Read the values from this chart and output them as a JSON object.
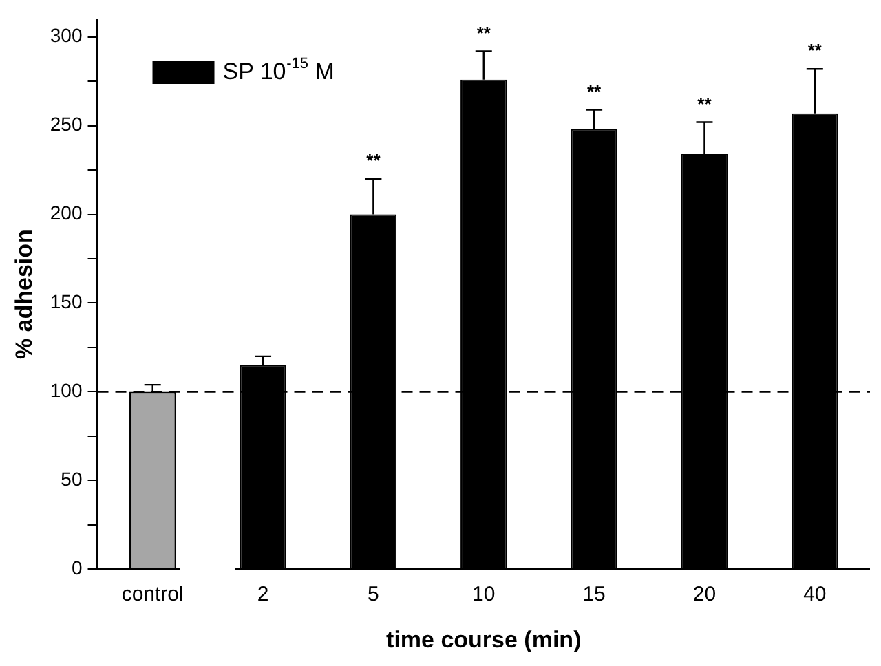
{
  "chart_data": {
    "type": "bar",
    "ylabel": "% adhesion",
    "xlabel": "time course (min)",
    "categories": [
      "control",
      "2",
      "5",
      "10",
      "15",
      "20",
      "40"
    ],
    "series": [
      {
        "name": "SP 10$^{-15}$ M",
        "color": "#000000",
        "colors": [
          "#a6a6a6",
          "#000000",
          "#000000",
          "#000000",
          "#000000",
          "#000000",
          "#000000"
        ],
        "values": [
          100,
          115,
          200,
          276,
          248,
          234,
          257
        ],
        "errors": [
          4,
          5,
          20,
          16,
          11,
          18,
          25
        ]
      }
    ],
    "ylim": [
      0,
      310
    ],
    "yticks": [
      0,
      {
        "value": 25,
        "label": null
      },
      50,
      {
        "value": 75,
        "label": null
      },
      100,
      {
        "value": 125,
        "label": null
      },
      150,
      {
        "value": 175,
        "label": null
      },
      200,
      {
        "value": 225,
        "label": null
      },
      250,
      {
        "value": 275,
        "label": null
      },
      300
    ],
    "ref_lines": [
      {
        "axis": "y",
        "value": 100,
        "color": "#000000",
        "line_style": "dashed"
      }
    ],
    "annotations": [
      "**",
      "**",
      "**",
      "**",
      "**"
    ],
    "legend": "top left",
    "grid": false
  }
}
